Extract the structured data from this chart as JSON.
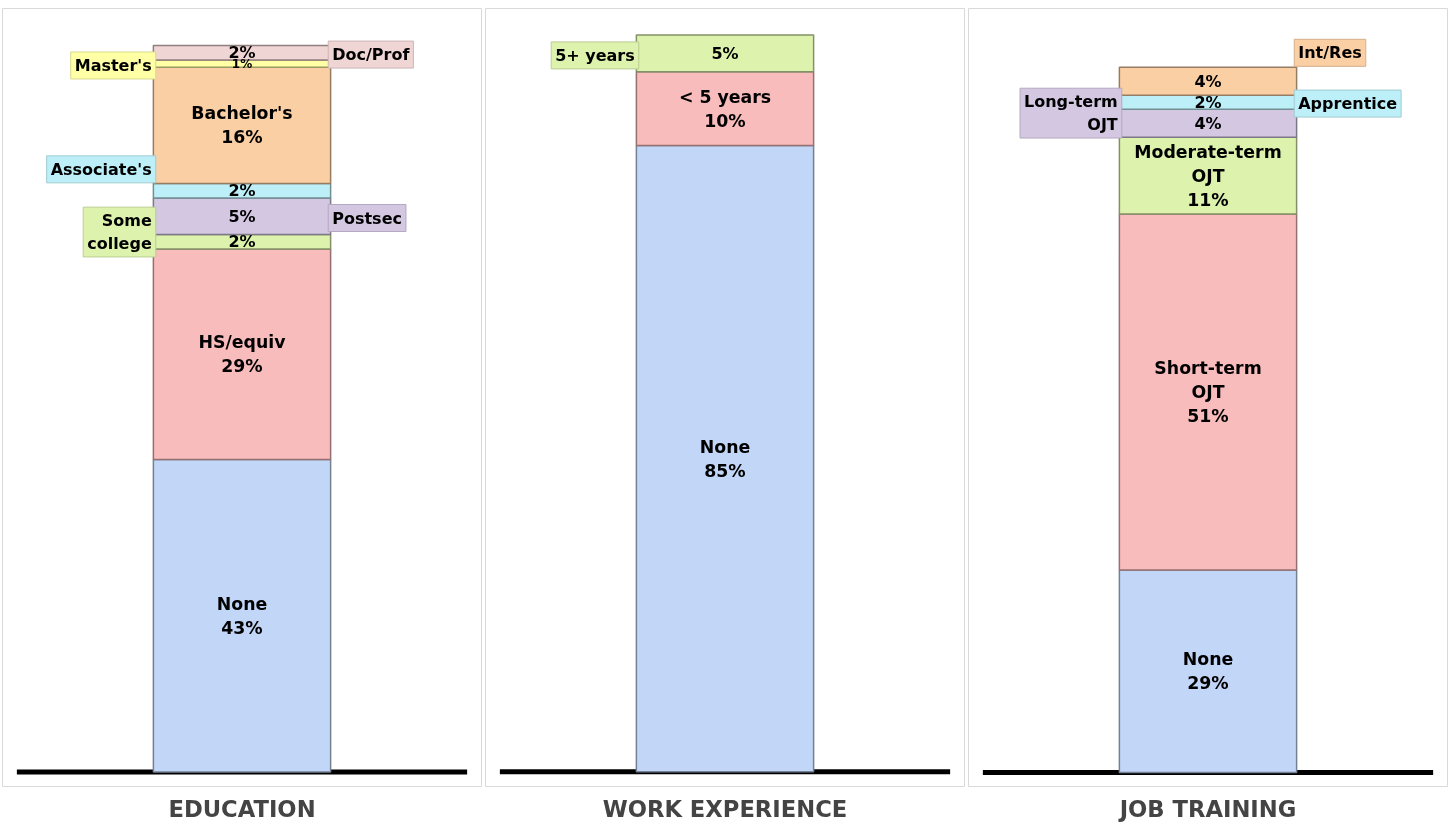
{
  "chart_data": [
    {
      "type": "bar",
      "stacked": true,
      "xlabel": "EDUCATION",
      "categories": [
        null
      ],
      "series": [
        {
          "name": "None",
          "color": "#c2d6f7",
          "values": [
            43
          ],
          "value_labels": [
            "43%"
          ]
        },
        {
          "name": "HS/equiv",
          "color": "#f9bcbc",
          "values": [
            29
          ],
          "value_labels": [
            "29%"
          ]
        },
        {
          "name": "Some college",
          "color": "#dcf2ad",
          "values": [
            2
          ],
          "value_labels": [
            "2%"
          ]
        },
        {
          "name": "Postsec",
          "color": "#d3c7e2",
          "values": [
            5
          ],
          "value_labels": [
            "5%"
          ]
        },
        {
          "name": "Associate's",
          "color": "#bdeff8",
          "values": [
            2
          ],
          "value_labels": [
            "2%"
          ]
        },
        {
          "name": "Bachelor's",
          "color": "#fbcfa4",
          "values": [
            16
          ],
          "value_labels": [
            "16%"
          ]
        },
        {
          "name": "Master's",
          "color": "#ffffa6",
          "values": [
            1
          ],
          "value_labels": [
            "1%"
          ]
        },
        {
          "name": "Doc/Prof",
          "color": "#f0d5d5",
          "values": [
            2
          ],
          "value_labels": [
            "2%"
          ]
        }
      ]
    },
    {
      "type": "bar",
      "stacked": true,
      "xlabel": "WORK EXPERIENCE",
      "categories": [
        null
      ],
      "series": [
        {
          "name": "None",
          "color": "#c2d6f7",
          "values": [
            85
          ],
          "value_labels": [
            "85%"
          ]
        },
        {
          "name": "< 5 years",
          "color": "#f9bcbc",
          "values": [
            10
          ],
          "value_labels": [
            "10%"
          ]
        },
        {
          "name": "5+ years",
          "color": "#dcf2ad",
          "values": [
            5
          ],
          "value_labels": [
            "5%"
          ]
        }
      ]
    },
    {
      "type": "bar",
      "stacked": true,
      "xlabel": "JOB TRAINING",
      "categories": [
        null
      ],
      "series": [
        {
          "name": "None",
          "color": "#c2d6f7",
          "values": [
            29
          ],
          "value_labels": [
            "29%"
          ]
        },
        {
          "name": "Short-term OJT",
          "color": "#f9bcbc",
          "values": [
            51
          ],
          "value_labels": [
            "51%"
          ]
        },
        {
          "name": "Moderate-term OJT",
          "color": "#dcf2ad",
          "values": [
            11
          ],
          "value_labels": [
            "11%"
          ]
        },
        {
          "name": "Long-term OJT",
          "color": "#d3c7e2",
          "values": [
            4
          ],
          "value_labels": [
            "4%"
          ]
        },
        {
          "name": "Apprentice",
          "color": "#bdeff8",
          "values": [
            2
          ],
          "value_labels": [
            "2%"
          ]
        },
        {
          "name": "Int/Res",
          "color": "#fbcfa4",
          "values": [
            4
          ],
          "value_labels": [
            "4%"
          ]
        }
      ]
    }
  ]
}
